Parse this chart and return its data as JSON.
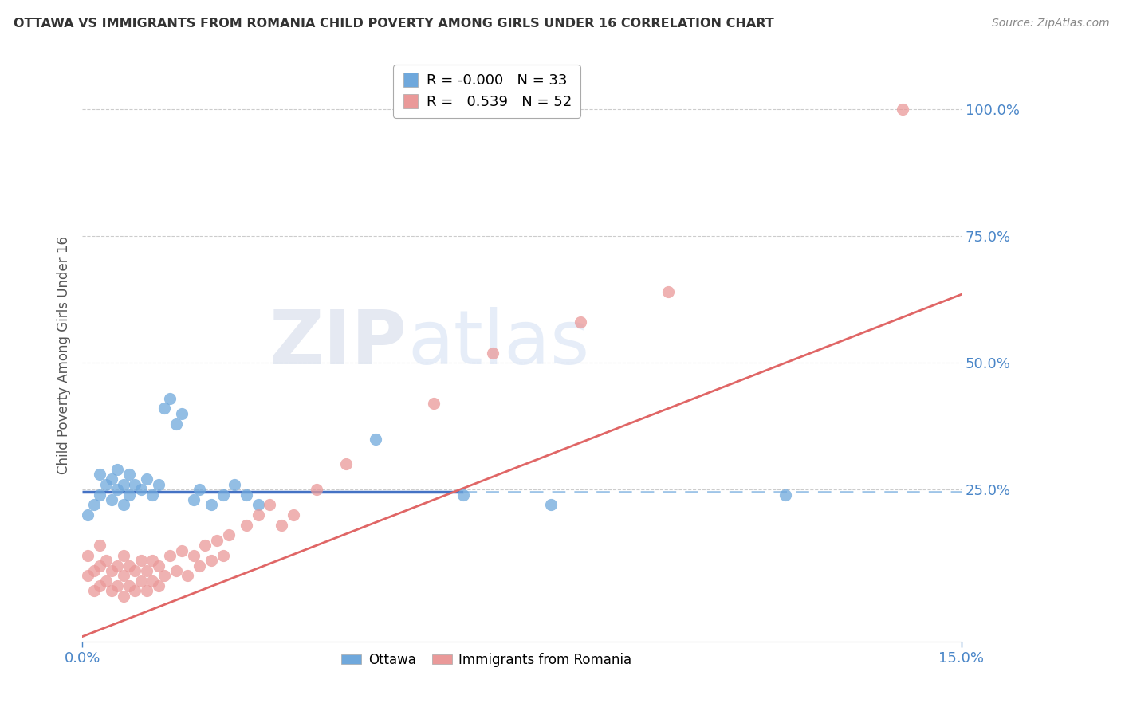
{
  "title": "OTTAWA VS IMMIGRANTS FROM ROMANIA CHILD POVERTY AMONG GIRLS UNDER 16 CORRELATION CHART",
  "source": "Source: ZipAtlas.com",
  "ylabel": "Child Poverty Among Girls Under 16",
  "xlim": [
    0.0,
    0.15
  ],
  "ylim": [
    -0.05,
    1.08
  ],
  "legend_r_blue": "-0.000",
  "legend_n_blue": "33",
  "legend_r_pink": "0.539",
  "legend_n_pink": "52",
  "blue_color": "#6fa8dc",
  "pink_color": "#ea9999",
  "trend_blue_solid_color": "#4472c4",
  "trend_blue_dash_color": "#9fc5e8",
  "trend_pink_color": "#e06666",
  "watermark_zip": "ZIP",
  "watermark_atlas": "atlas",
  "blue_scatter_x": [
    0.001,
    0.002,
    0.003,
    0.003,
    0.004,
    0.005,
    0.005,
    0.006,
    0.006,
    0.007,
    0.007,
    0.008,
    0.008,
    0.009,
    0.01,
    0.011,
    0.012,
    0.013,
    0.014,
    0.015,
    0.016,
    0.017,
    0.019,
    0.02,
    0.022,
    0.024,
    0.026,
    0.028,
    0.03,
    0.05,
    0.065,
    0.08,
    0.12
  ],
  "blue_scatter_y": [
    0.2,
    0.22,
    0.24,
    0.28,
    0.26,
    0.23,
    0.27,
    0.25,
    0.29,
    0.22,
    0.26,
    0.24,
    0.28,
    0.26,
    0.25,
    0.27,
    0.24,
    0.26,
    0.41,
    0.43,
    0.38,
    0.4,
    0.23,
    0.25,
    0.22,
    0.24,
    0.26,
    0.24,
    0.22,
    0.35,
    0.24,
    0.22,
    0.24
  ],
  "pink_scatter_x": [
    0.001,
    0.001,
    0.002,
    0.002,
    0.003,
    0.003,
    0.003,
    0.004,
    0.004,
    0.005,
    0.005,
    0.006,
    0.006,
    0.007,
    0.007,
    0.007,
    0.008,
    0.008,
    0.009,
    0.009,
    0.01,
    0.01,
    0.011,
    0.011,
    0.012,
    0.012,
    0.013,
    0.013,
    0.014,
    0.015,
    0.016,
    0.017,
    0.018,
    0.019,
    0.02,
    0.021,
    0.022,
    0.023,
    0.024,
    0.025,
    0.028,
    0.03,
    0.032,
    0.034,
    0.036,
    0.04,
    0.045,
    0.06,
    0.07,
    0.085,
    0.1,
    0.14
  ],
  "pink_scatter_y": [
    0.08,
    0.12,
    0.05,
    0.09,
    0.06,
    0.1,
    0.14,
    0.07,
    0.11,
    0.05,
    0.09,
    0.06,
    0.1,
    0.04,
    0.08,
    0.12,
    0.06,
    0.1,
    0.05,
    0.09,
    0.07,
    0.11,
    0.05,
    0.09,
    0.07,
    0.11,
    0.06,
    0.1,
    0.08,
    0.12,
    0.09,
    0.13,
    0.08,
    0.12,
    0.1,
    0.14,
    0.11,
    0.15,
    0.12,
    0.16,
    0.18,
    0.2,
    0.22,
    0.18,
    0.2,
    0.25,
    0.3,
    0.42,
    0.52,
    0.58,
    0.64,
    1.0
  ],
  "blue_trend_y_intercept": 0.245,
  "blue_trend_slope": 0.0,
  "pink_trend_y_intercept": -0.04,
  "pink_trend_slope": 4.5
}
